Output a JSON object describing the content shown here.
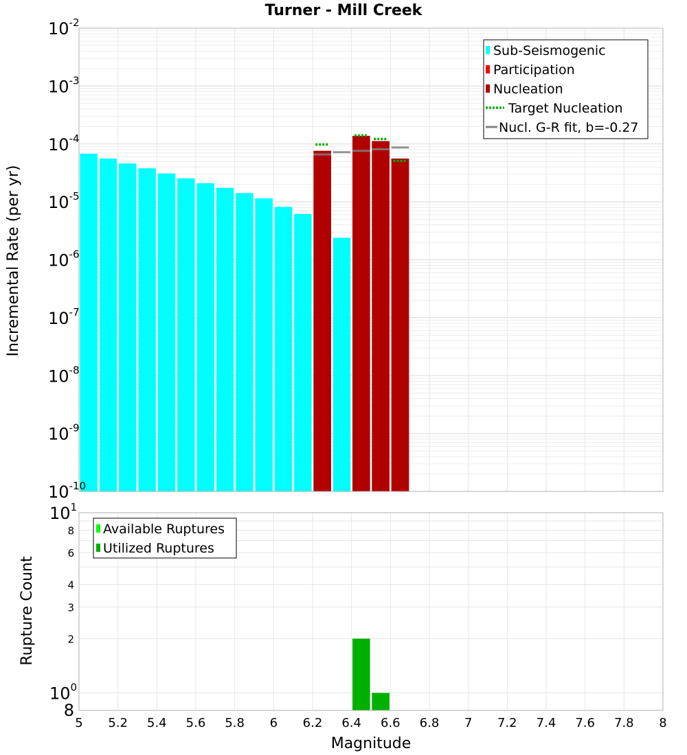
{
  "chart_data": [
    {
      "type": "bar",
      "title": "Turner - Mill Creek",
      "ylabel": "Incremental Rate (per yr)",
      "xlabel": "",
      "xlim": [
        5,
        8
      ],
      "ylim": [
        1e-10,
        0.01
      ],
      "yscale": "log",
      "grid": true,
      "legend_position": "top-right",
      "bar_width": 0.09,
      "y_ticks": [
        {
          "base": "10",
          "exp": "-10"
        },
        {
          "base": "10",
          "exp": "-9"
        },
        {
          "base": "10",
          "exp": "-8"
        },
        {
          "base": "10",
          "exp": "-7"
        },
        {
          "base": "10",
          "exp": "-6"
        },
        {
          "base": "10",
          "exp": "-5"
        },
        {
          "base": "10",
          "exp": "-4"
        },
        {
          "base": "10",
          "exp": "-3"
        },
        {
          "base": "10",
          "exp": "-2"
        }
      ],
      "series": [
        {
          "name": "Sub-Seismogenic",
          "color": "#00ffff",
          "kind": "bar",
          "x": [
            5.05,
            5.15,
            5.25,
            5.35,
            5.45,
            5.55,
            5.65,
            5.75,
            5.85,
            5.95,
            6.05,
            6.15,
            6.35
          ],
          "values": [
            6.8e-05,
            5.6e-05,
            4.6e-05,
            3.8e-05,
            3.1e-05,
            2.55e-05,
            2.1e-05,
            1.75e-05,
            1.42e-05,
            1.15e-05,
            8.2e-06,
            6.2e-06,
            2.4e-06
          ]
        },
        {
          "name": "Participation",
          "color": "#ff0000",
          "kind": "bar",
          "x": [
            6.25,
            6.45,
            6.55,
            6.65
          ],
          "values": [
            7.6e-05,
            0.000138,
            0.000112,
            5.6e-05
          ]
        },
        {
          "name": "Nucleation",
          "color": "#b00000",
          "kind": "bar",
          "x": [
            6.25,
            6.45,
            6.55,
            6.65
          ],
          "values": [
            7.6e-05,
            0.000138,
            0.000112,
            5.6e-05
          ]
        },
        {
          "name": "Target Nucleation",
          "color": "#00b000",
          "kind": "dotted-segment",
          "x": [
            6.25,
            6.45,
            6.55,
            6.65
          ],
          "values": [
            9.8e-05,
            0.00014,
            0.000122,
            5.1e-05
          ]
        },
        {
          "name": "Nucl. G-R fit, b=-0.27",
          "color": "#808080",
          "kind": "segment",
          "x": [
            6.25,
            6.35,
            6.45,
            6.55,
            6.65
          ],
          "values": [
            6.6e-05,
            7.2e-05,
            7.6e-05,
            8.1e-05,
            8.7e-05
          ]
        }
      ]
    },
    {
      "type": "bar",
      "title": "",
      "ylabel": "Rupture Count",
      "xlabel": "Magnitude",
      "xlim": [
        5,
        8
      ],
      "ylim": [
        0.8,
        10
      ],
      "yscale": "log",
      "grid": true,
      "legend_position": "top-left",
      "bar_width": 0.09,
      "x_ticks": [
        "5",
        "5.2",
        "5.4",
        "5.6",
        "5.8",
        "6",
        "6.2",
        "6.4",
        "6.6",
        "6.8",
        "7",
        "7.2",
        "7.4",
        "7.6",
        "7.8",
        "8"
      ],
      "y_major_ticks": [
        {
          "base": "10",
          "exp": "0",
          "value": 1
        },
        {
          "base": "10",
          "exp": "1",
          "value": 10
        }
      ],
      "y_minor_ticks": [
        {
          "label": "8",
          "value": 0.8
        },
        {
          "label": "2",
          "value": 2
        },
        {
          "label": "3",
          "value": 3
        },
        {
          "label": "4",
          "value": 4
        },
        {
          "label": "6",
          "value": 6
        },
        {
          "label": "8",
          "value": 8
        }
      ],
      "series": [
        {
          "name": "Available Ruptures",
          "color": "#00ff00",
          "kind": "bar",
          "x": [
            6.45,
            6.55
          ],
          "values": [
            2,
            1
          ]
        },
        {
          "name": "Utilized Ruptures",
          "color": "#00b000",
          "kind": "bar",
          "x": [
            6.45,
            6.55
          ],
          "values": [
            2,
            1
          ]
        }
      ]
    }
  ]
}
